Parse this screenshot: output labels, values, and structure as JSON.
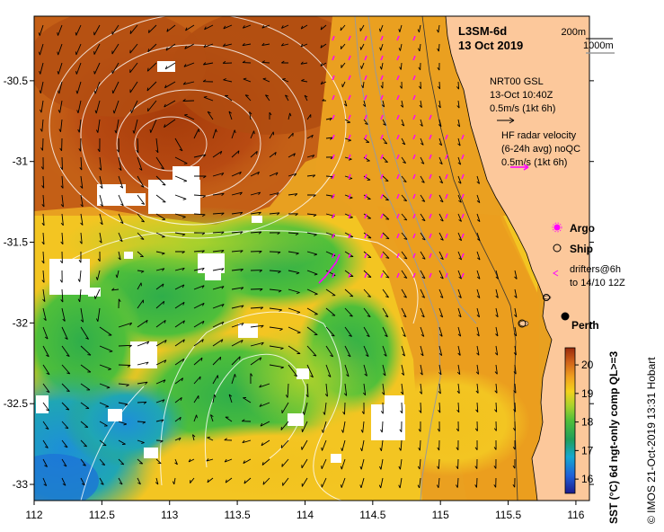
{
  "header": {
    "product": "L3SM-6d",
    "date": "13 Oct 2019",
    "contour_200": "200m",
    "contour_1000": "1000m"
  },
  "legend": {
    "gsl_title": "NRT00 GSL",
    "gsl_time": "13-Oct 10:40Z",
    "gsl_scale": "0.5m/s (1kt 6h)",
    "hf_title": "HF radar velocity",
    "hf_subtitle": "(6-24h avg) noQC",
    "hf_scale": "0.5m/s (1kt 6h)",
    "argo_label": "Argo",
    "ship_label": "Ship",
    "drifters_label": "drifters@6h",
    "drifters_time": "to 14/10 12Z",
    "city_label": "Perth"
  },
  "colorbar": {
    "label": "SST (°C) 6d ngt-only comp QL>=3",
    "ticks": [
      "16",
      "17",
      "18",
      "19",
      "20"
    ],
    "min": 15.5,
    "max": 20.6
  },
  "credit": "© IMOS 21-Oct-2019 13:31 Hobart",
  "axes": {
    "x_ticks": [
      "112",
      "112.5",
      "113",
      "113.5",
      "114",
      "114.5",
      "115",
      "115.5",
      "116"
    ],
    "y_ticks": [
      "-30.5",
      "-31",
      "-31.5",
      "-32",
      "-32.5",
      "-33"
    ],
    "x_values": [
      112,
      112.5,
      113,
      113.5,
      114,
      114.5,
      115,
      115.5,
      116
    ],
    "y_values": [
      -30.5,
      -31,
      -31.5,
      -32,
      -32.5,
      -33
    ],
    "lon_range": [
      112,
      116.1
    ],
    "lat_range": [
      -33.1,
      -30.1
    ]
  },
  "colors": {
    "land": "#fcc89b",
    "argo": "#ff00ff",
    "contour_200": "#000000",
    "contour_1000": "#9a9a9a"
  }
}
